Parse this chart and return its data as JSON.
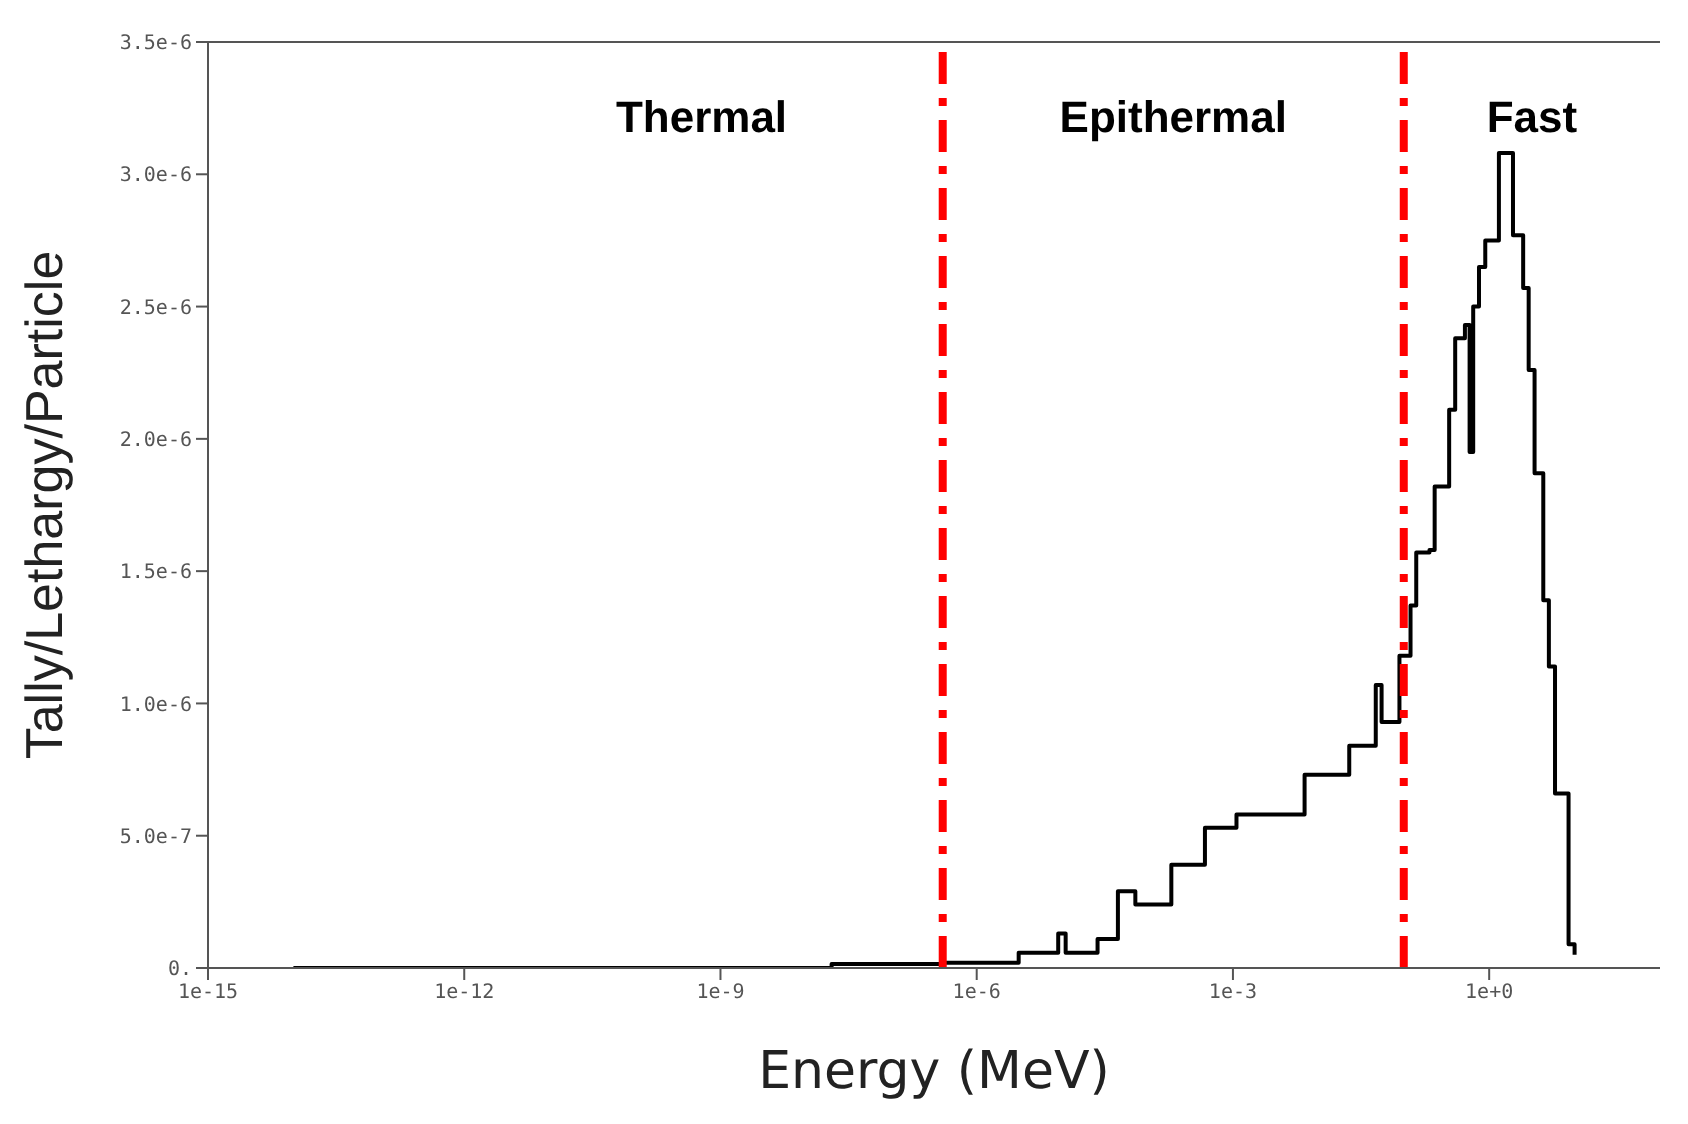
{
  "chart_data": {
    "type": "step",
    "xlabel": "Energy (MeV)",
    "ylabel": "Tally/Lethargy/Particle",
    "log": "x",
    "marker": "none",
    "line_style": "solid",
    "xlim": [
      1e-15,
      100
    ],
    "xticks": [
      {
        "value": 1e-15,
        "label": "1e-15"
      },
      {
        "value": 1e-12,
        "label": "1e-12"
      },
      {
        "value": 1e-09,
        "label": "1e-9"
      },
      {
        "value": 1e-06,
        "label": "1e-6"
      },
      {
        "value": 0.001,
        "label": "1e-3"
      },
      {
        "value": 1,
        "label": "1e+0"
      }
    ],
    "ylim": [
      0,
      3.5e-06
    ],
    "yticks": [
      {
        "value": 0,
        "label": "0."
      },
      {
        "value": 5e-07,
        "label": "5.0e-7"
      },
      {
        "value": 1e-06,
        "label": "1.0e-6"
      },
      {
        "value": 1.5e-06,
        "label": "1.5e-6"
      },
      {
        "value": 2e-06,
        "label": "2.0e-6"
      },
      {
        "value": 2.5e-06,
        "label": "2.5e-6"
      },
      {
        "value": 3e-06,
        "label": "3.0e-6"
      },
      {
        "value": 3.5e-06,
        "label": "3.5e-6"
      }
    ],
    "x": [
      1e-14,
      2e-08,
      4e-07,
      2.3e-06,
      3.1e-06,
      9e-06,
      1.1e-05,
      2.6e-05,
      4.5e-05,
      7.2e-05,
      0.00019,
      0.00047,
      0.0011,
      0.0069,
      0.023,
      0.047,
      0.055,
      0.089,
      0.12,
      0.14,
      0.2,
      0.23,
      0.34,
      0.4,
      0.52,
      0.59,
      0.65,
      0.76,
      0.9,
      1.3,
      1.7,
      1.9,
      2.5,
      2.9,
      3.4,
      4.3,
      5,
      5.9,
      8.5,
      10
    ],
    "series": [
      {
        "color": "#000000",
        "values": [
          0,
          1.5e-08,
          2e-08,
          2e-08,
          5.8e-08,
          1.3e-07,
          5.8e-08,
          1.1e-07,
          2.9e-07,
          2.4e-07,
          3.9e-07,
          5.3e-07,
          5.8e-07,
          7.3e-07,
          8.4e-07,
          1.07e-06,
          9.3e-07,
          1.18e-06,
          1.37e-06,
          1.57e-06,
          1.58e-06,
          1.82e-06,
          2.11e-06,
          2.38e-06,
          2.43e-06,
          1.95e-06,
          2.5e-06,
          2.65e-06,
          2.75e-06,
          3.08e-06,
          3.08e-06,
          2.77e-06,
          2.57e-06,
          2.26e-06,
          1.87e-06,
          1.39e-06,
          1.14e-06,
          6.6e-07,
          9e-08,
          5e-08
        ]
      }
    ],
    "ref_lines": [
      {
        "axis": "x",
        "value": 4e-07,
        "color": "#ff0000",
        "line_style": "dashed"
      },
      {
        "axis": "x",
        "value": 0.1,
        "color": "#ff0000",
        "line_style": "dashed"
      }
    ],
    "annotations": [
      "Thermal",
      "Epithermal",
      "Fast"
    ]
  }
}
